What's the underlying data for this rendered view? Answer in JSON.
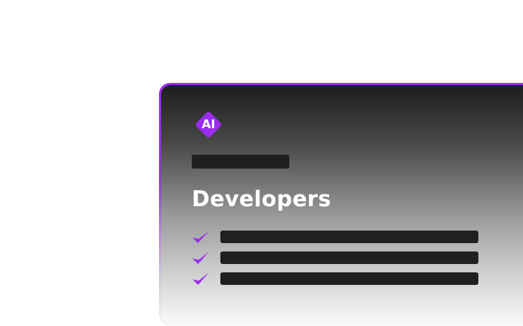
{
  "card": {
    "logo_text": "AI",
    "title": "Developers",
    "features_count": 3
  },
  "colors": {
    "accent": "#9b2cf0",
    "placeholder_bar": "#202020"
  },
  "icons": [
    "ai-diamond-logo",
    "check-icon"
  ]
}
